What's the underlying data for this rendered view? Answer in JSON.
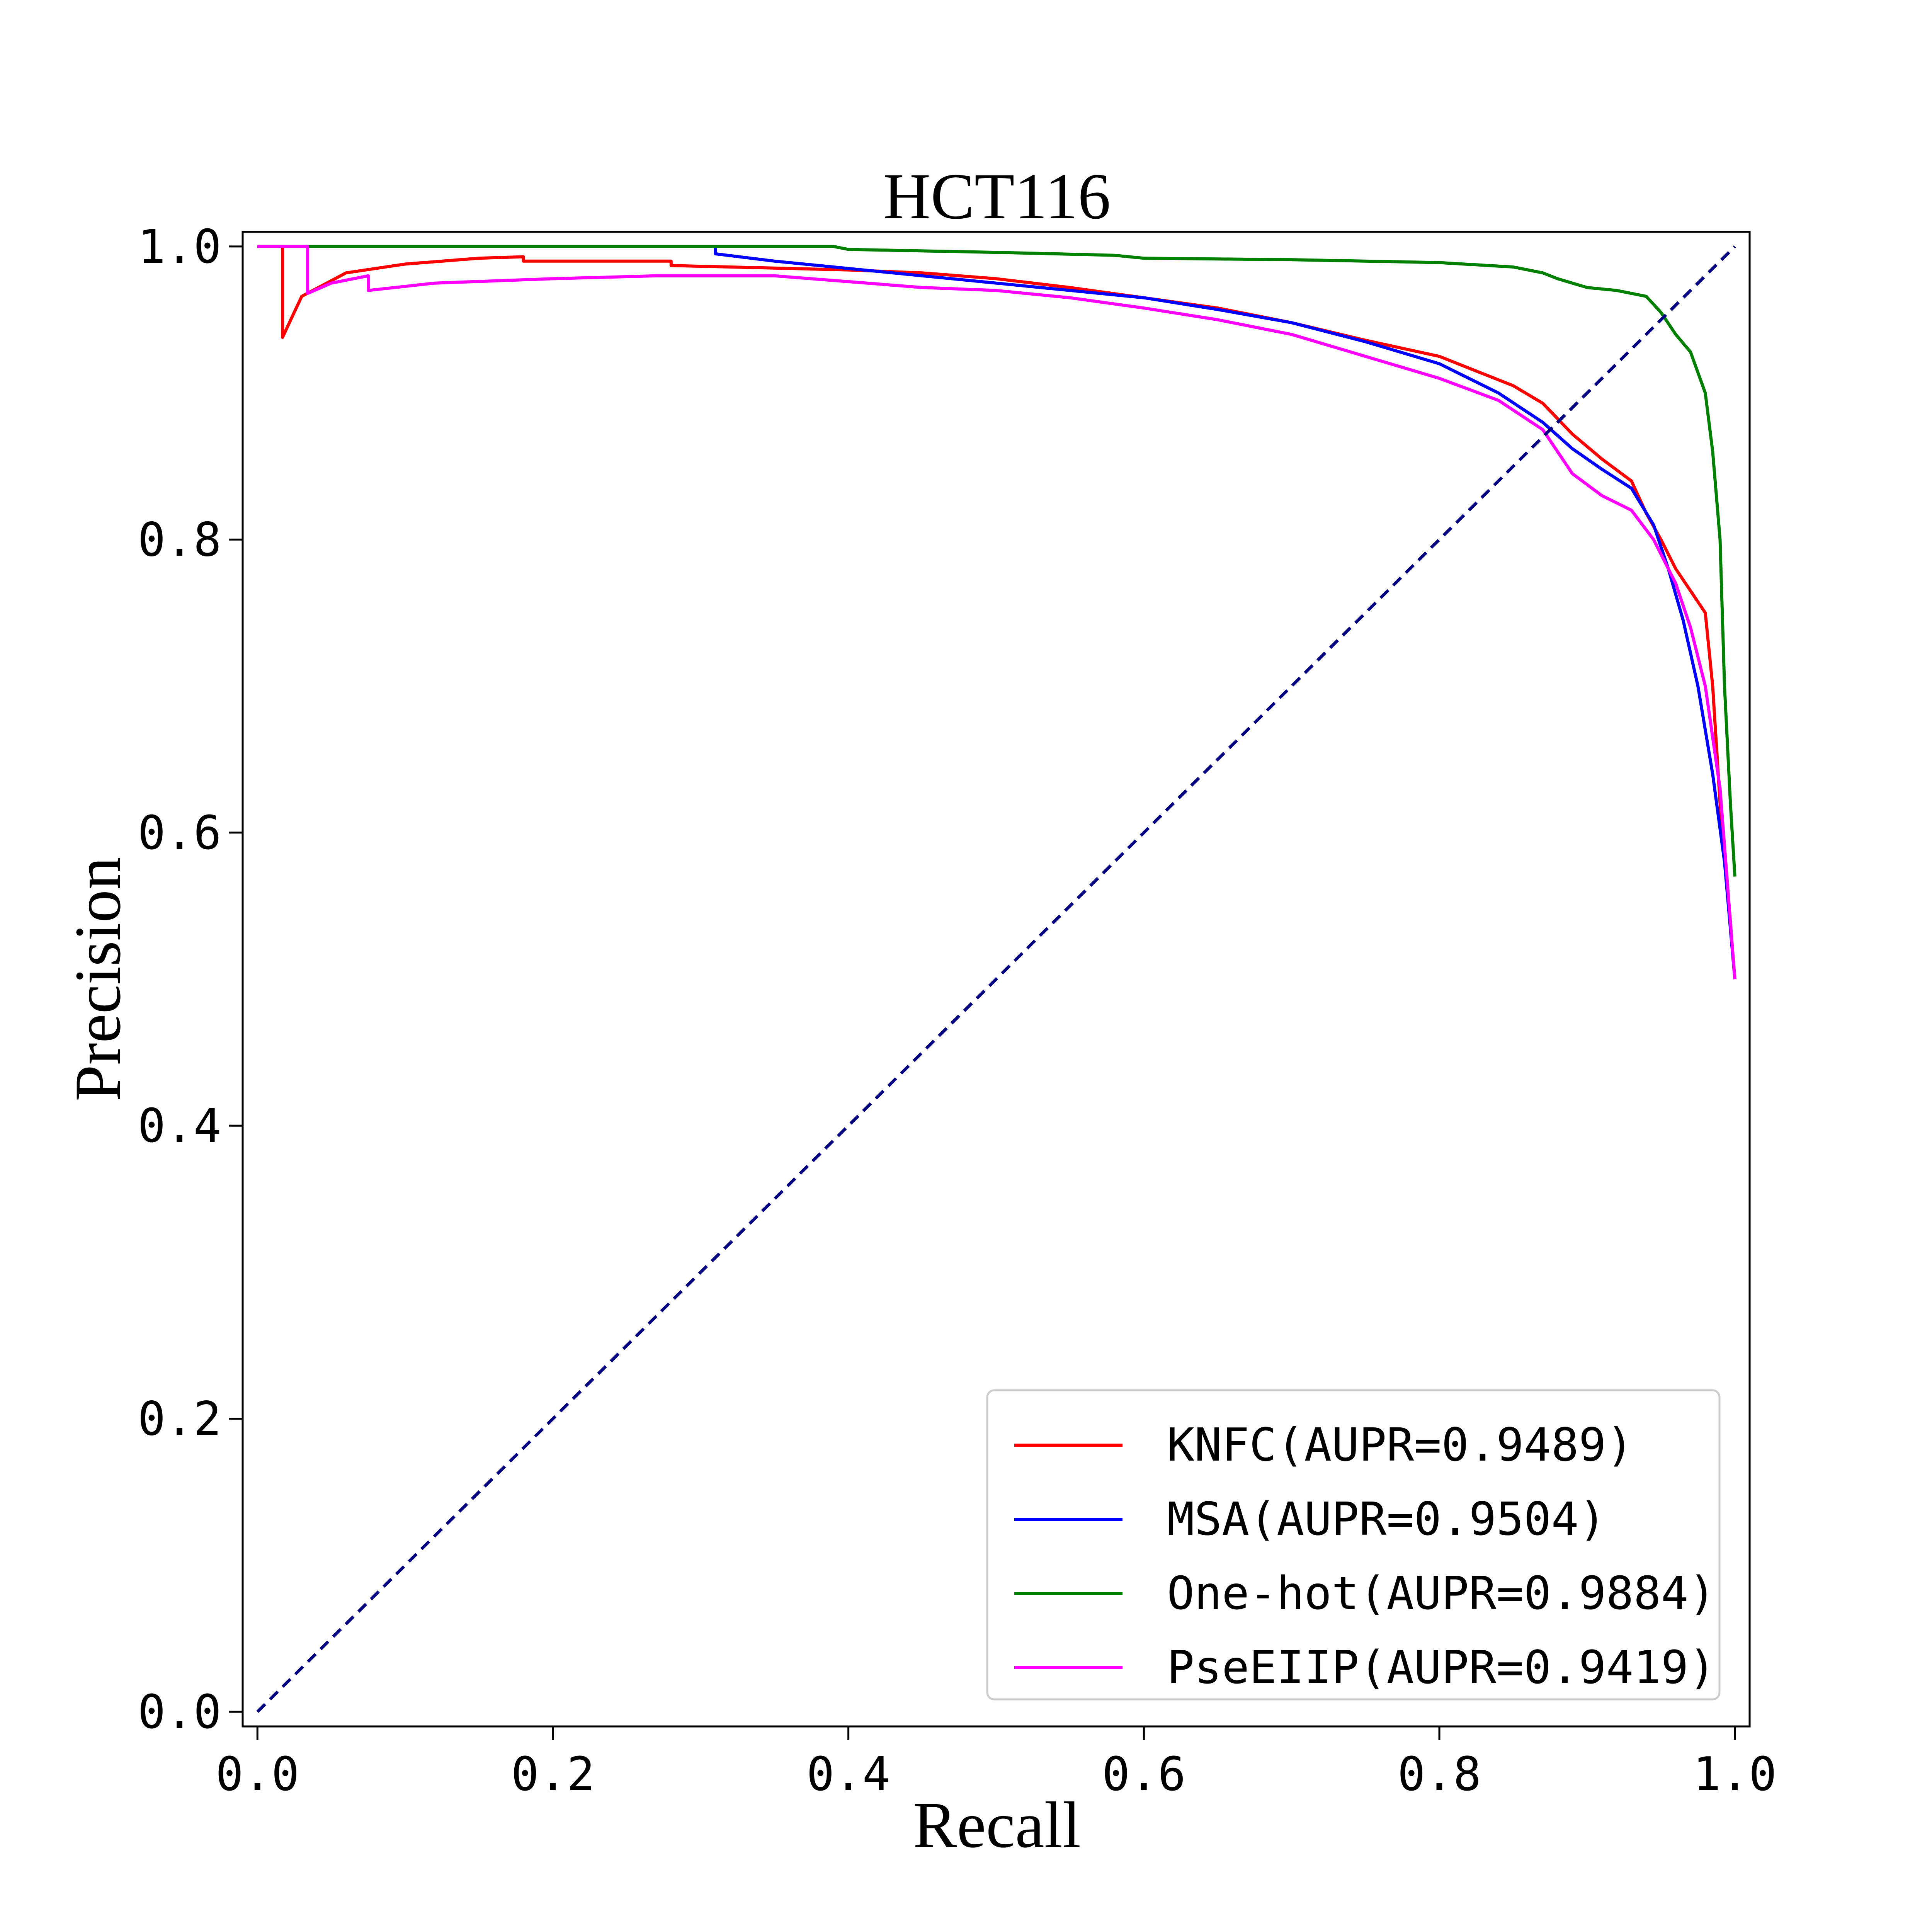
{
  "chart_data": {
    "type": "line",
    "title": "HCT116",
    "xlabel": "Recall",
    "ylabel": "Precision",
    "xlim": [
      -0.01,
      1.01
    ],
    "ylim": [
      -0.01,
      1.01
    ],
    "xticks": [
      "0.0",
      "0.2",
      "0.4",
      "0.6",
      "0.8",
      "1.0"
    ],
    "yticks": [
      "0.0",
      "0.2",
      "0.4",
      "0.6",
      "0.8",
      "1.0"
    ],
    "grid": false,
    "legend_position": "lower-right",
    "series": [
      {
        "name": "KNFC(AUPR=0.9489)",
        "color": "#ff0000",
        "points": [
          [
            0.0,
            1.0
          ],
          [
            0.017,
            1.0
          ],
          [
            0.017,
            0.938
          ],
          [
            0.03,
            0.966
          ],
          [
            0.06,
            0.982
          ],
          [
            0.1,
            0.988
          ],
          [
            0.15,
            0.992
          ],
          [
            0.18,
            0.993
          ],
          [
            0.18,
            0.99
          ],
          [
            0.28,
            0.99
          ],
          [
            0.28,
            0.987
          ],
          [
            0.4,
            0.984
          ],
          [
            0.45,
            0.982
          ],
          [
            0.5,
            0.978
          ],
          [
            0.55,
            0.972
          ],
          [
            0.6,
            0.965
          ],
          [
            0.65,
            0.958
          ],
          [
            0.7,
            0.948
          ],
          [
            0.75,
            0.936
          ],
          [
            0.8,
            0.925
          ],
          [
            0.85,
            0.905
          ],
          [
            0.87,
            0.893
          ],
          [
            0.89,
            0.872
          ],
          [
            0.91,
            0.855
          ],
          [
            0.93,
            0.84
          ],
          [
            0.94,
            0.818
          ],
          [
            0.95,
            0.8
          ],
          [
            0.96,
            0.78
          ],
          [
            0.97,
            0.765
          ],
          [
            0.98,
            0.75
          ],
          [
            0.985,
            0.7
          ],
          [
            0.99,
            0.62
          ],
          [
            1.0,
            0.5
          ]
        ]
      },
      {
        "name": "MSA(AUPR=0.9504)",
        "color": "#0000ff",
        "points": [
          [
            0.31,
            1.0
          ],
          [
            0.31,
            0.995
          ],
          [
            0.35,
            0.99
          ],
          [
            0.4,
            0.985
          ],
          [
            0.45,
            0.98
          ],
          [
            0.5,
            0.975
          ],
          [
            0.55,
            0.97
          ],
          [
            0.6,
            0.965
          ],
          [
            0.65,
            0.957
          ],
          [
            0.7,
            0.948
          ],
          [
            0.75,
            0.935
          ],
          [
            0.8,
            0.92
          ],
          [
            0.84,
            0.9
          ],
          [
            0.87,
            0.88
          ],
          [
            0.89,
            0.862
          ],
          [
            0.91,
            0.848
          ],
          [
            0.93,
            0.835
          ],
          [
            0.945,
            0.81
          ],
          [
            0.955,
            0.78
          ],
          [
            0.965,
            0.745
          ],
          [
            0.975,
            0.7
          ],
          [
            0.985,
            0.64
          ],
          [
            0.993,
            0.58
          ],
          [
            1.0,
            0.5
          ]
        ]
      },
      {
        "name": "One-hot(AUPR=0.9884)",
        "color": "#008000",
        "points": [
          [
            0.0,
            1.0
          ],
          [
            0.39,
            1.0
          ],
          [
            0.4,
            0.998
          ],
          [
            0.5,
            0.996
          ],
          [
            0.58,
            0.994
          ],
          [
            0.6,
            0.992
          ],
          [
            0.7,
            0.991
          ],
          [
            0.8,
            0.989
          ],
          [
            0.85,
            0.986
          ],
          [
            0.87,
            0.982
          ],
          [
            0.88,
            0.978
          ],
          [
            0.9,
            0.972
          ],
          [
            0.92,
            0.97
          ],
          [
            0.94,
            0.966
          ],
          [
            0.95,
            0.955
          ],
          [
            0.96,
            0.94
          ],
          [
            0.97,
            0.928
          ],
          [
            0.98,
            0.9
          ],
          [
            0.985,
            0.86
          ],
          [
            0.99,
            0.8
          ],
          [
            0.993,
            0.7
          ],
          [
            0.997,
            0.62
          ],
          [
            1.0,
            0.57
          ]
        ]
      },
      {
        "name": "PseEIIP(AUPR=0.9419)",
        "color": "#ff00ff",
        "points": [
          [
            0.0,
            1.0
          ],
          [
            0.034,
            1.0
          ],
          [
            0.034,
            0.968
          ],
          [
            0.05,
            0.975
          ],
          [
            0.075,
            0.98
          ],
          [
            0.075,
            0.97
          ],
          [
            0.12,
            0.975
          ],
          [
            0.2,
            0.978
          ],
          [
            0.27,
            0.98
          ],
          [
            0.35,
            0.98
          ],
          [
            0.4,
            0.976
          ],
          [
            0.45,
            0.972
          ],
          [
            0.5,
            0.97
          ],
          [
            0.55,
            0.965
          ],
          [
            0.6,
            0.958
          ],
          [
            0.65,
            0.95
          ],
          [
            0.7,
            0.94
          ],
          [
            0.75,
            0.925
          ],
          [
            0.8,
            0.91
          ],
          [
            0.84,
            0.895
          ],
          [
            0.87,
            0.875
          ],
          [
            0.89,
            0.845
          ],
          [
            0.91,
            0.83
          ],
          [
            0.93,
            0.82
          ],
          [
            0.945,
            0.8
          ],
          [
            0.96,
            0.77
          ],
          [
            0.97,
            0.74
          ],
          [
            0.98,
            0.7
          ],
          [
            0.99,
            0.63
          ],
          [
            1.0,
            0.5
          ]
        ]
      },
      {
        "name": "",
        "color": "#000080",
        "style": "dashed",
        "points": [
          [
            0.0,
            0.0
          ],
          [
            1.0,
            1.0
          ]
        ]
      }
    ]
  }
}
